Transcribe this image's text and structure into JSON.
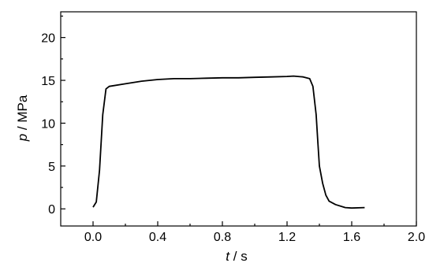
{
  "chart_data": {
    "type": "line",
    "xlabel": {
      "var": "t",
      "unit": " / s"
    },
    "ylabel": {
      "var": "p",
      "unit": " / MPa"
    },
    "xlim": [
      -0.2,
      2.0
    ],
    "ylim": [
      -2,
      23
    ],
    "x_ticks": [
      0.0,
      0.4,
      0.8,
      1.2,
      1.6,
      2.0
    ],
    "x_tick_labels": [
      "0.0",
      "0.4",
      "0.8",
      "1.2",
      "1.6",
      "2.0"
    ],
    "y_ticks": [
      0,
      5,
      10,
      15,
      20
    ],
    "y_tick_labels": [
      "0",
      "5",
      "10",
      "15",
      "20"
    ],
    "grid": false,
    "series": [
      {
        "color": "#000000",
        "points": [
          [
            0.0,
            0.2
          ],
          [
            0.02,
            0.8
          ],
          [
            0.04,
            4.5
          ],
          [
            0.06,
            11.0
          ],
          [
            0.08,
            14.0
          ],
          [
            0.1,
            14.3
          ],
          [
            0.2,
            14.6
          ],
          [
            0.3,
            14.9
          ],
          [
            0.4,
            15.1
          ],
          [
            0.5,
            15.2
          ],
          [
            0.6,
            15.2
          ],
          [
            0.7,
            15.25
          ],
          [
            0.8,
            15.3
          ],
          [
            0.9,
            15.3
          ],
          [
            1.0,
            15.35
          ],
          [
            1.1,
            15.4
          ],
          [
            1.2,
            15.45
          ],
          [
            1.24,
            15.5
          ],
          [
            1.3,
            15.4
          ],
          [
            1.34,
            15.2
          ],
          [
            1.36,
            14.3
          ],
          [
            1.38,
            11.0
          ],
          [
            1.39,
            8.0
          ],
          [
            1.4,
            5.0
          ],
          [
            1.42,
            3.0
          ],
          [
            1.44,
            1.6
          ],
          [
            1.46,
            0.9
          ],
          [
            1.5,
            0.5
          ],
          [
            1.56,
            0.15
          ],
          [
            1.6,
            0.1
          ],
          [
            1.68,
            0.15
          ]
        ]
      }
    ]
  }
}
